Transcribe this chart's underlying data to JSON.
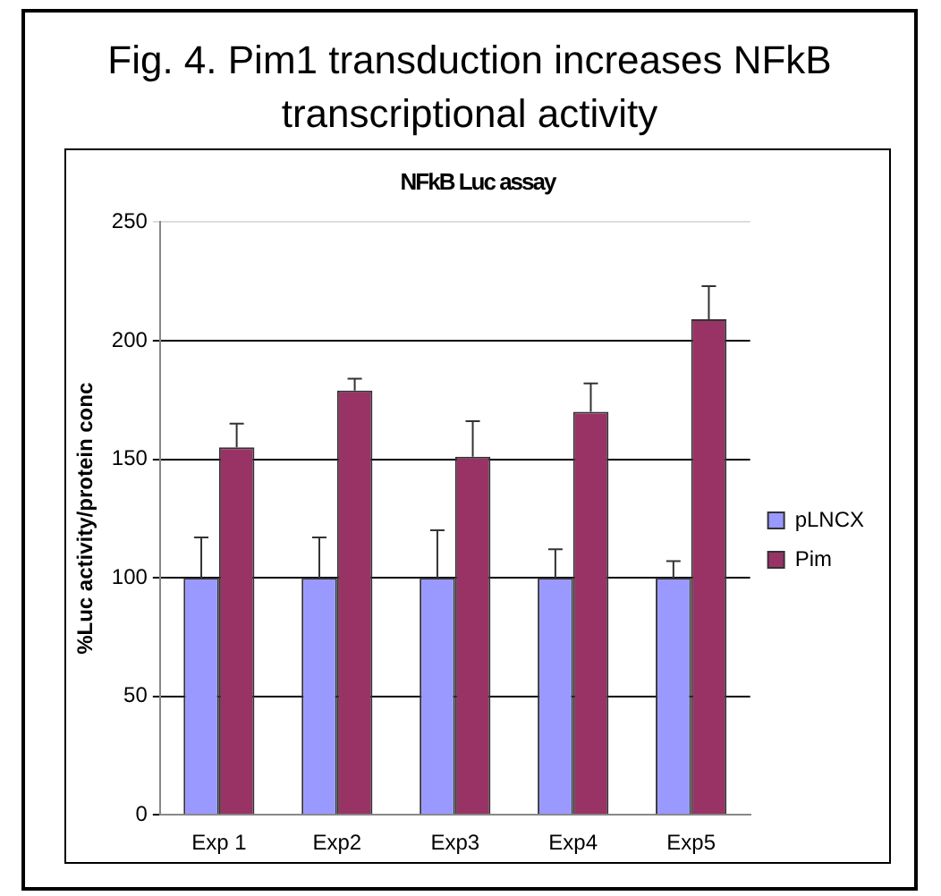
{
  "chart_data": {
    "type": "bar",
    "title": "Fig. 4.  Pim1 transduction increases NFkB transcriptional activity",
    "subtitle": "NFkB Luc assay",
    "ylabel": "%Luc activity/protein conc",
    "categories": [
      "Exp 1",
      "Exp2",
      "Exp3",
      "Exp4",
      "Exp5"
    ],
    "series": [
      {
        "name": "pLNCX",
        "color": "#9999ff",
        "values": [
          100,
          100,
          100,
          100,
          100
        ],
        "errors": [
          [
            100,
            117
          ],
          [
            100,
            117
          ],
          [
            100,
            120
          ],
          [
            100,
            112
          ],
          [
            100,
            107
          ]
        ]
      },
      {
        "name": "Pim",
        "color": "#993366",
        "values": [
          155,
          179,
          151,
          170,
          209
        ],
        "errors": [
          [
            155,
            165
          ],
          [
            179,
            184
          ],
          [
            151,
            166
          ],
          [
            170,
            182
          ],
          [
            209,
            223
          ]
        ]
      }
    ],
    "ylim": [
      0,
      250
    ],
    "yticks": [
      0,
      50,
      100,
      150,
      200,
      250
    ],
    "grid": "y",
    "legend": "right"
  }
}
